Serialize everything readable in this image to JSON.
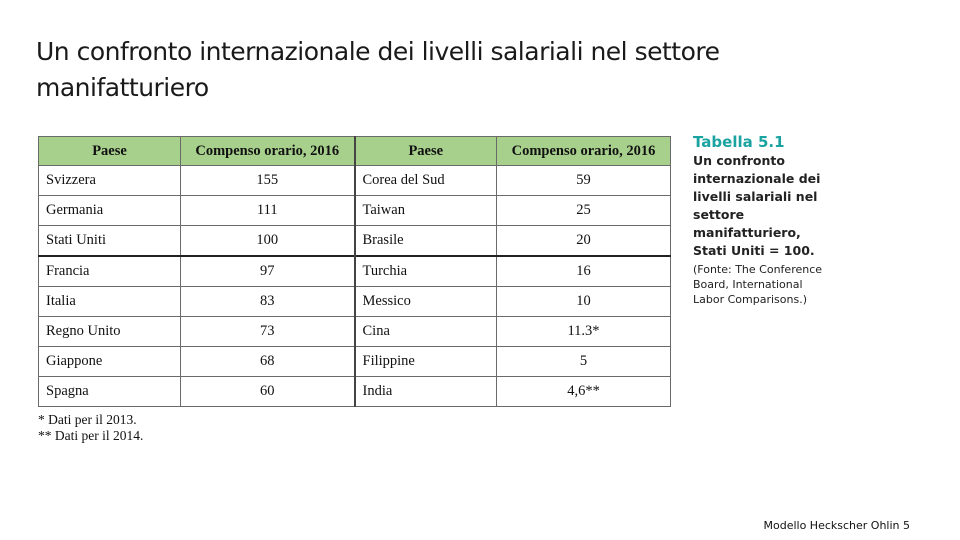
{
  "title": {
    "line1": "Un confronto internazionale dei livelli salariali nel settore",
    "line2": "manifatturiero"
  },
  "table": {
    "headers": [
      "Paese",
      "Compenso orario, 2016",
      "Paese",
      "Compenso orario, 2016"
    ],
    "rows": [
      [
        "Svizzera",
        "155",
        "Corea del Sud",
        "59"
      ],
      [
        "Germania",
        "111",
        "Taiwan",
        "25"
      ],
      [
        "Stati Uniti",
        "100",
        "Brasile",
        "20"
      ],
      [
        "Francia",
        "97",
        "Turchia",
        "16"
      ],
      [
        "Italia",
        "83",
        "Messico",
        "10"
      ],
      [
        "Regno Unito",
        "73",
        "Cina",
        "11.3*"
      ],
      [
        "Giappone",
        "68",
        "Filippine",
        "5"
      ],
      [
        "Spagna",
        "60",
        "India",
        "4,6**"
      ]
    ]
  },
  "footnotes": [
    "* Dati per il 2013.",
    "** Dati per il 2014."
  ],
  "caption": {
    "label": "Tabella 5.1",
    "text": "Un confronto internazionale dei livelli salariali nel settore manifatturiero, Stati Uniti = 100.",
    "source": "(Fonte: The Conference Board, International Labor Comparisons.)"
  },
  "footer": "Modello Heckscher Ohlin 5",
  "colors": {
    "header_fill": "#a8d08d",
    "caption_label": "#1aa3a0"
  }
}
